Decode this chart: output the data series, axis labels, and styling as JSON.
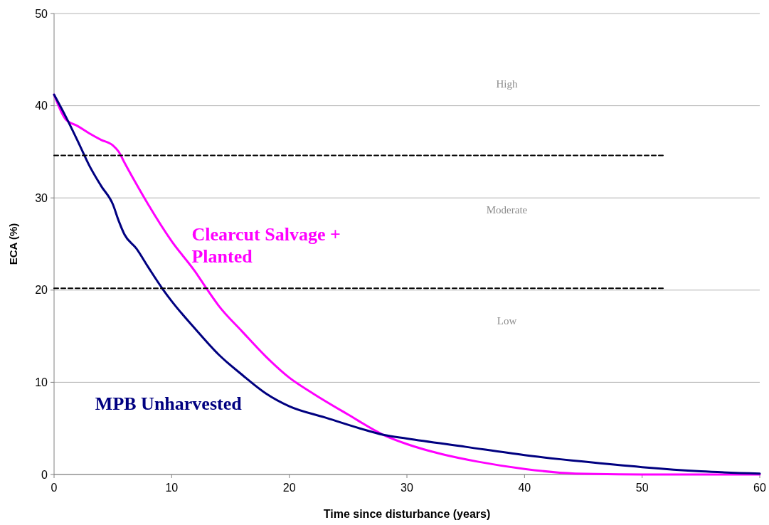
{
  "chart_data": {
    "type": "line",
    "xlabel": "Time since disturbance (years)",
    "ylabel": "ECA (%)",
    "xlim": [
      0,
      60
    ],
    "xticks": [
      0,
      10,
      20,
      30,
      40,
      50,
      60
    ],
    "ylim": [
      0,
      50
    ],
    "yticks": [
      0,
      10,
      20,
      30,
      40,
      50
    ],
    "grid": "y",
    "legend": false,
    "line_style": "solid",
    "series": [
      {
        "name": "Clearcut Salvage + Planted",
        "color": "#ff00ff",
        "x": [
          0,
          1,
          2,
          3,
          4,
          5,
          5.5,
          6,
          7,
          8,
          10,
          12,
          13,
          14,
          16,
          18,
          20,
          22,
          25,
          28,
          30,
          33,
          36,
          40,
          43,
          46,
          50,
          55,
          60
        ],
        "values": [
          41.2,
          38.5,
          37.8,
          37,
          36.3,
          35.7,
          35,
          33.8,
          31.5,
          29.3,
          25.3,
          22,
          20.1,
          18.3,
          15.5,
          12.8,
          10.5,
          8.8,
          6.5,
          4.3,
          3.3,
          2.2,
          1.4,
          0.6,
          0.2,
          0.05,
          0,
          0,
          0
        ]
      },
      {
        "name": "MPB Unharvested",
        "color": "#000080",
        "x": [
          0,
          1,
          2,
          3,
          4,
          5,
          5.5,
          6,
          7,
          8,
          9.3,
          10,
          12,
          14,
          16,
          18,
          20,
          23,
          26,
          28,
          30,
          35,
          40,
          45,
          50,
          55,
          60
        ],
        "values": [
          41.2,
          38.8,
          36.2,
          33.5,
          31.3,
          29.3,
          27.5,
          26,
          24.5,
          22.5,
          20,
          18.8,
          15.8,
          13,
          10.8,
          8.8,
          7.4,
          6.2,
          5,
          4.3,
          3.9,
          3,
          2.1,
          1.4,
          0.8,
          0.35,
          0.1
        ]
      },
      {
        "type": "line",
        "line_style": "dashed",
        "color": "#000000",
        "x": [
          0,
          52
        ],
        "values": [
          34.6,
          34.6
        ]
      },
      {
        "type": "line",
        "line_style": "dashed",
        "color": "#000000",
        "x": [
          0,
          52
        ],
        "values": [
          20.2,
          20.2
        ]
      }
    ],
    "annotations": [
      "High",
      "Moderate",
      "Low"
    ]
  }
}
